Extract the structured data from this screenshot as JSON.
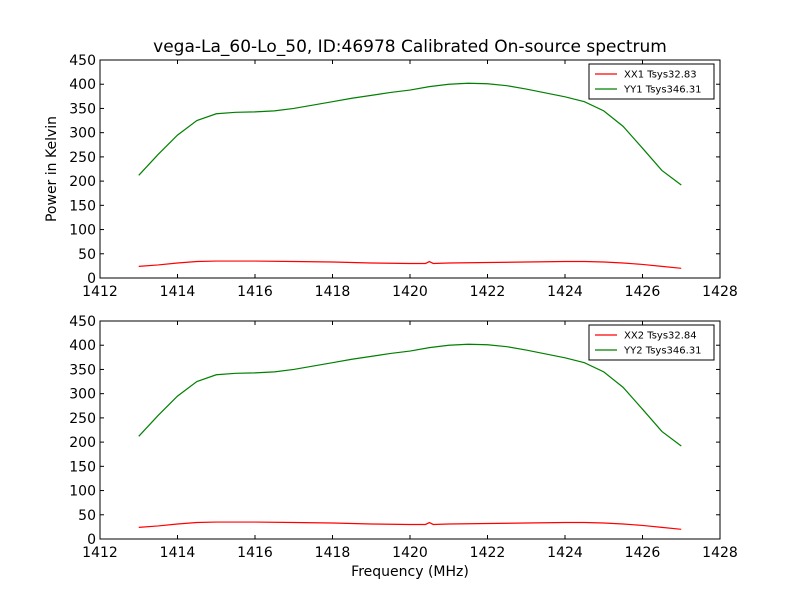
{
  "chart_data": [
    {
      "type": "line",
      "title": "vega-La_60-Lo_50, ID:46978 Calibrated On-source spectrum",
      "xlabel": "",
      "ylabel": "Power in Kelvin",
      "xlim": [
        1412,
        1428
      ],
      "ylim": [
        0,
        450
      ],
      "xticks": [
        "1412",
        "1414",
        "1416",
        "1418",
        "1420",
        "1422",
        "1424",
        "1426",
        "1428"
      ],
      "yticks": [
        "0",
        "50",
        "100",
        "150",
        "200",
        "250",
        "300",
        "350",
        "400",
        "450"
      ],
      "legend_position": "top-right",
      "series": [
        {
          "name": "XX1 Tsys32.83",
          "color": "#ff0000",
          "x": [
            1413.0,
            1413.5,
            1414.0,
            1414.5,
            1415.0,
            1415.5,
            1416.0,
            1417.0,
            1418.0,
            1419.0,
            1420.0,
            1420.4,
            1420.5,
            1420.6,
            1421.0,
            1422.0,
            1423.0,
            1424.0,
            1424.5,
            1425.0,
            1425.5,
            1426.0,
            1426.5,
            1427.0
          ],
          "y": [
            24,
            27,
            31,
            34,
            35,
            35,
            35,
            34,
            33,
            31,
            30,
            30,
            34,
            30,
            31,
            32,
            33,
            34,
            34,
            33,
            31,
            28,
            24,
            20
          ]
        },
        {
          "name": "YY1 Tsys346.31",
          "color": "#008000",
          "x": [
            1413.0,
            1413.5,
            1414.0,
            1414.5,
            1415.0,
            1415.5,
            1416.0,
            1416.5,
            1417.0,
            1417.5,
            1418.0,
            1418.5,
            1419.0,
            1419.5,
            1420.0,
            1420.5,
            1421.0,
            1421.5,
            1422.0,
            1422.5,
            1423.0,
            1423.5,
            1424.0,
            1424.5,
            1425.0,
            1425.5,
            1426.0,
            1426.5,
            1427.0
          ],
          "y": [
            212,
            255,
            295,
            325,
            339,
            342,
            343,
            345,
            350,
            357,
            364,
            371,
            377,
            383,
            388,
            395,
            400,
            402,
            401,
            397,
            390,
            382,
            374,
            364,
            345,
            313,
            268,
            222,
            192
          ]
        }
      ]
    },
    {
      "type": "line",
      "title": "",
      "xlabel": "Frequency (MHz)",
      "ylabel": "",
      "xlim": [
        1412,
        1428
      ],
      "ylim": [
        0,
        450
      ],
      "xticks": [
        "1412",
        "1414",
        "1416",
        "1418",
        "1420",
        "1422",
        "1424",
        "1426",
        "1428"
      ],
      "yticks": [
        "0",
        "50",
        "100",
        "150",
        "200",
        "250",
        "300",
        "350",
        "400",
        "450"
      ],
      "legend_position": "top-right",
      "series": [
        {
          "name": "XX2 Tsys32.84",
          "color": "#ff0000",
          "x": [
            1413.0,
            1413.5,
            1414.0,
            1414.5,
            1415.0,
            1415.5,
            1416.0,
            1417.0,
            1418.0,
            1419.0,
            1420.0,
            1420.4,
            1420.5,
            1420.6,
            1421.0,
            1422.0,
            1423.0,
            1424.0,
            1424.5,
            1425.0,
            1425.5,
            1426.0,
            1426.5,
            1427.0
          ],
          "y": [
            24,
            27,
            31,
            34,
            35,
            35,
            35,
            34,
            33,
            31,
            30,
            30,
            34,
            30,
            31,
            32,
            33,
            34,
            34,
            33,
            31,
            28,
            24,
            20
          ]
        },
        {
          "name": "YY2 Tsys346.31",
          "color": "#008000",
          "x": [
            1413.0,
            1413.5,
            1414.0,
            1414.5,
            1415.0,
            1415.5,
            1416.0,
            1416.5,
            1417.0,
            1417.5,
            1418.0,
            1418.5,
            1419.0,
            1419.5,
            1420.0,
            1420.5,
            1421.0,
            1421.5,
            1422.0,
            1422.5,
            1423.0,
            1423.5,
            1424.0,
            1424.5,
            1425.0,
            1425.5,
            1426.0,
            1426.5,
            1427.0
          ],
          "y": [
            212,
            255,
            295,
            325,
            339,
            342,
            343,
            345,
            350,
            357,
            364,
            371,
            377,
            383,
            388,
            395,
            400,
            402,
            401,
            397,
            390,
            382,
            374,
            364,
            345,
            313,
            268,
            222,
            192
          ]
        }
      ]
    }
  ]
}
